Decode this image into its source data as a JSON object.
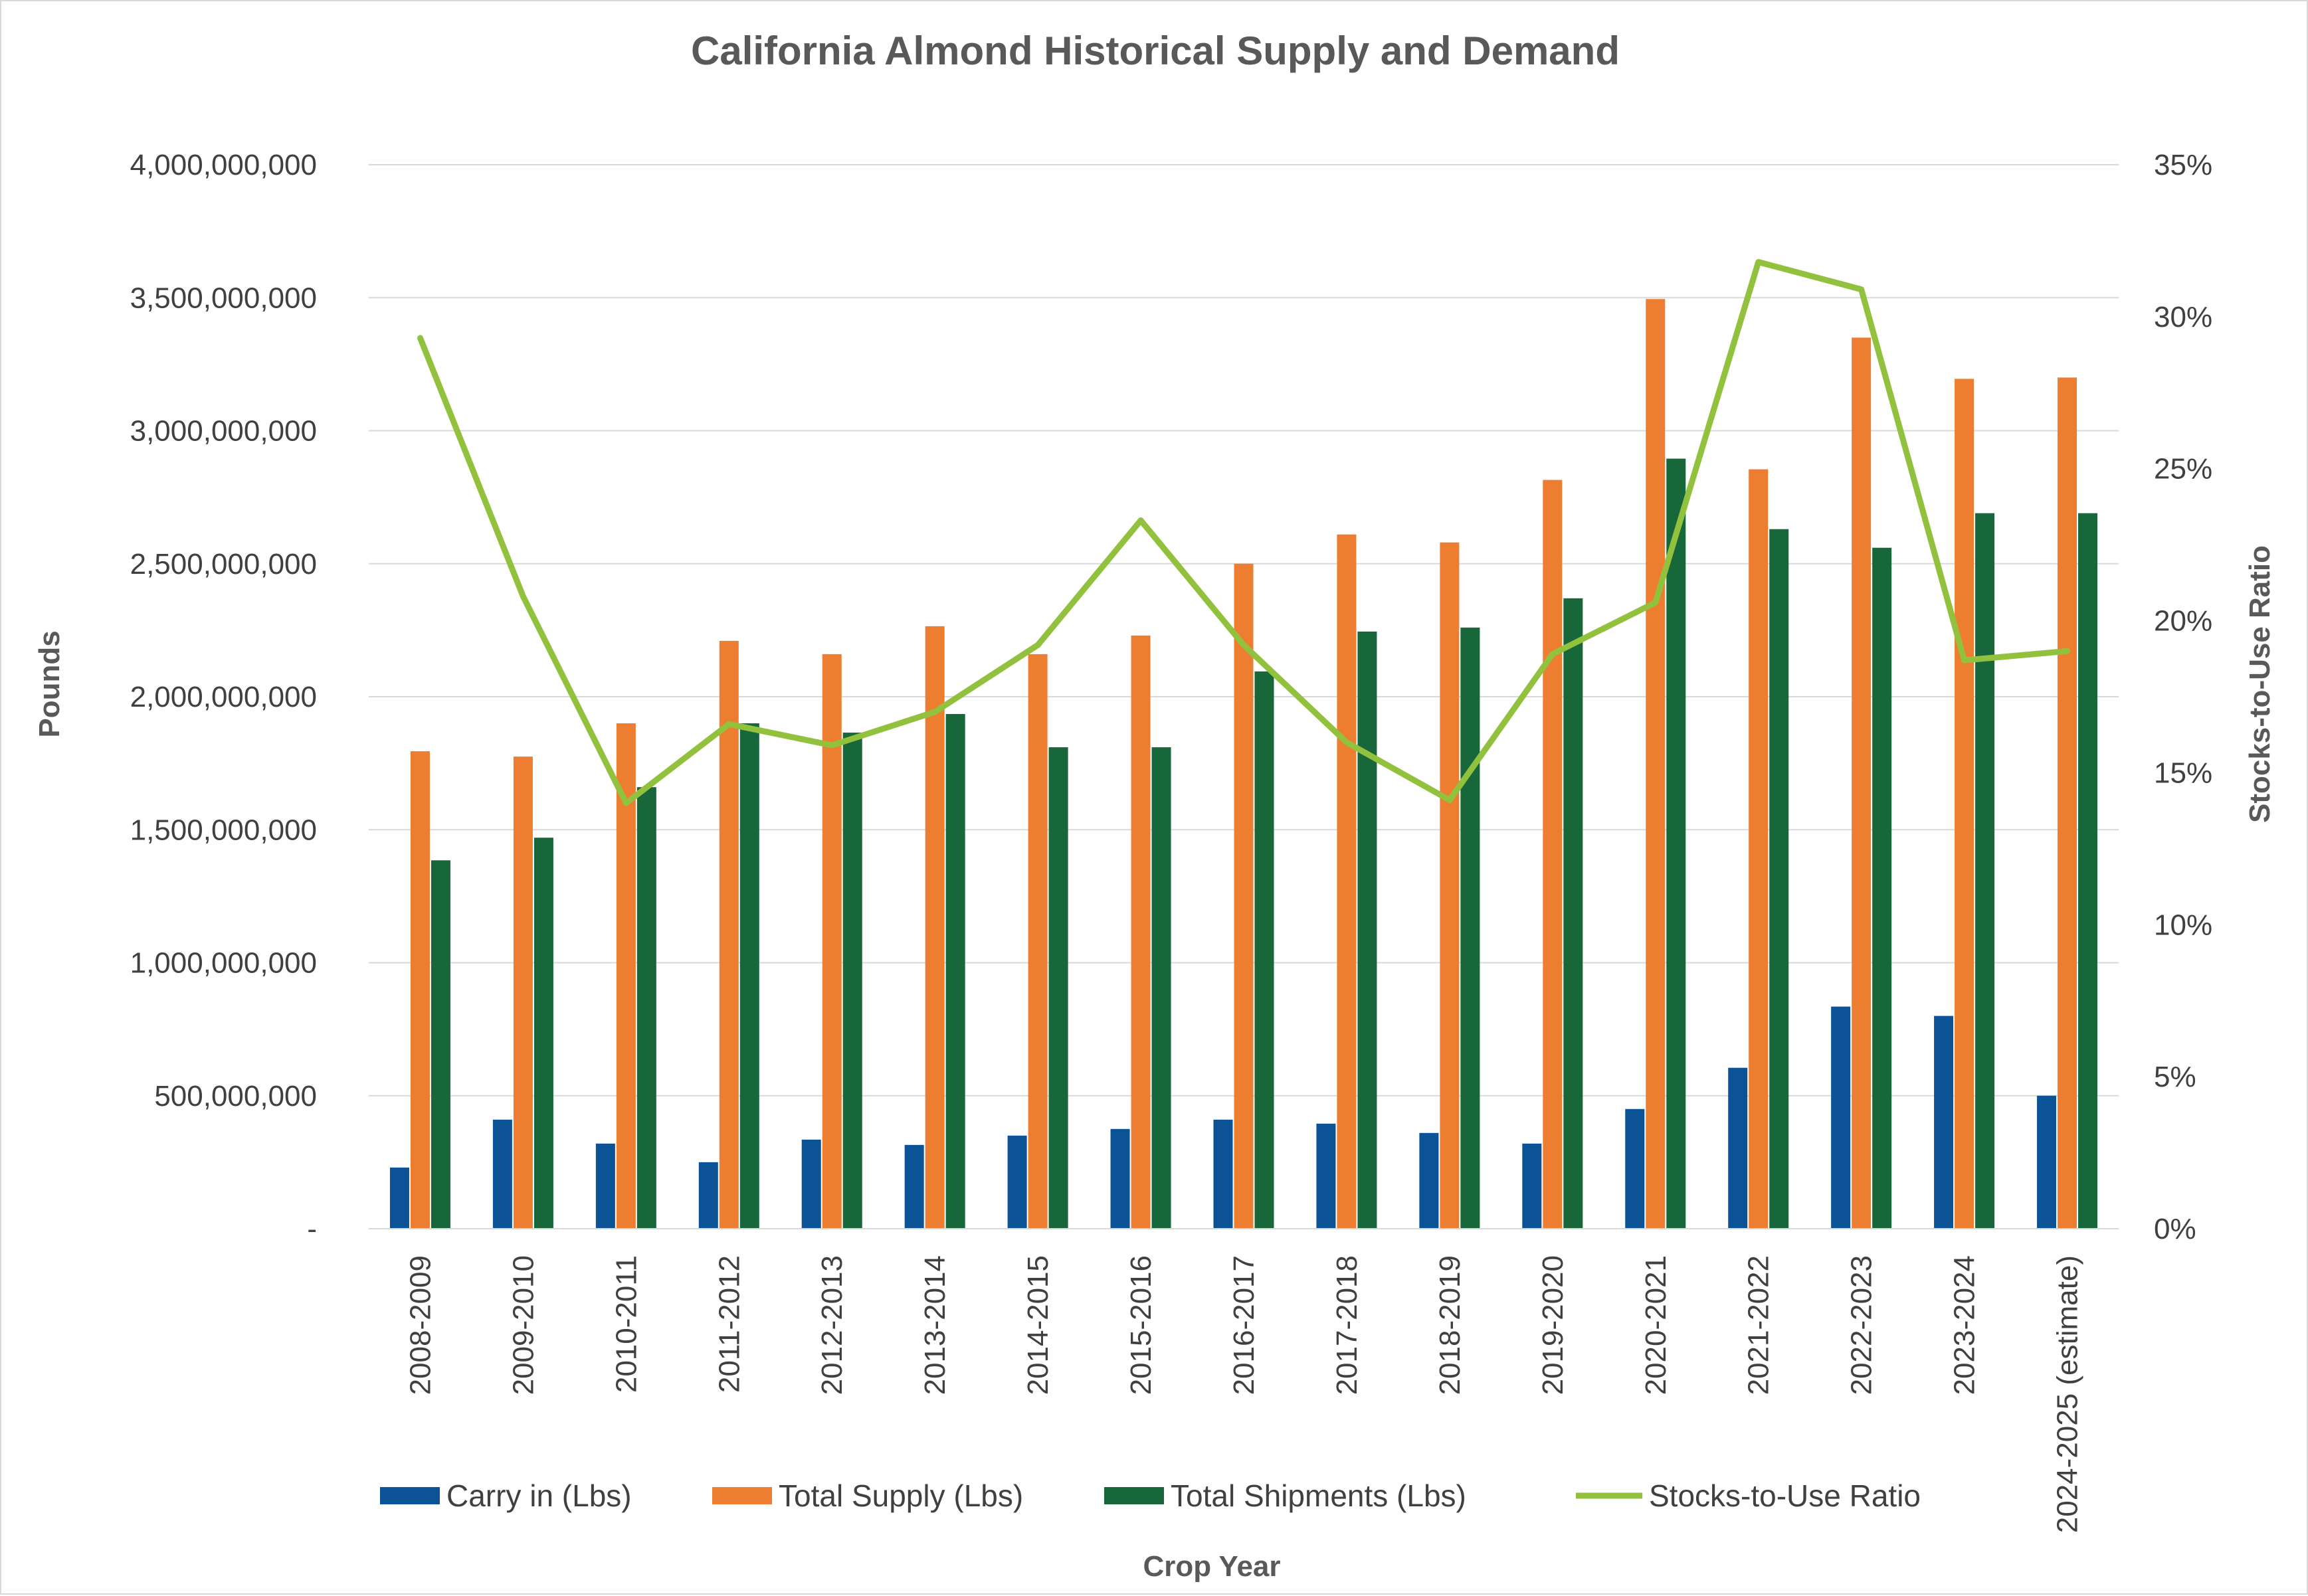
{
  "chart_data": {
    "type": "bar",
    "title": "California Almond Historical Supply and Demand",
    "xlabel": "Crop Year",
    "ylabel": "Pounds",
    "y2label": "Stocks-to-Use Ratio",
    "ylim": [
      0,
      4000000000
    ],
    "y2lim": [
      0,
      0.35
    ],
    "y_ticks": [
      "-",
      "500,000,000",
      "1,000,000,000",
      "1,500,000,000",
      "2,000,000,000",
      "2,500,000,000",
      "3,000,000,000",
      "3,500,000,000",
      "4,000,000,000"
    ],
    "y2_ticks": [
      "0%",
      "5%",
      "10%",
      "15%",
      "20%",
      "25%",
      "30%",
      "35%"
    ],
    "grid": true,
    "legend_position": "bottom",
    "categories": [
      "2008-2009",
      "2009-2010",
      "2010-2011",
      "2011-2012",
      "2012-2013",
      "2013-2014",
      "2014-2015",
      "2015-2016",
      "2016-2017",
      "2017-2018",
      "2018-2019",
      "2019-2020",
      "2020-2021",
      "2021-2022",
      "2022-2023",
      "2023-2024",
      "2024-2025 (estimate)"
    ],
    "series": [
      {
        "name": "Carry in (Lbs)",
        "kind": "bar",
        "axis": "left",
        "color": "#0b5394",
        "values": [
          230000000,
          410000000,
          320000000,
          250000000,
          335000000,
          315000000,
          350000000,
          375000000,
          410000000,
          395000000,
          360000000,
          320000000,
          450000000,
          605000000,
          835000000,
          800000000,
          500000000
        ]
      },
      {
        "name": "Total Supply (Lbs)",
        "kind": "bar",
        "axis": "left",
        "color": "#ed7d31",
        "values": [
          1795000000,
          1775000000,
          1900000000,
          2210000000,
          2160000000,
          2265000000,
          2160000000,
          2230000000,
          2500000000,
          2610000000,
          2580000000,
          2815000000,
          3495000000,
          2855000000,
          3350000000,
          3195000000,
          3200000000
        ]
      },
      {
        "name": "Total Shipments (Lbs)",
        "kind": "bar",
        "axis": "left",
        "color": "#17673a",
        "values": [
          1385000000,
          1470000000,
          1660000000,
          1900000000,
          1865000000,
          1935000000,
          1810000000,
          1810000000,
          2095000000,
          2245000000,
          2260000000,
          2370000000,
          2895000000,
          2630000000,
          2560000000,
          2690000000,
          2690000000
        ]
      },
      {
        "name": "Stocks-to-Use Ratio",
        "kind": "line",
        "axis": "right",
        "color": "#92c13e",
        "values": [
          0.293,
          0.208,
          0.14,
          0.166,
          0.159,
          0.17,
          0.192,
          0.233,
          0.192,
          0.16,
          0.141,
          0.189,
          0.206,
          0.318,
          0.309,
          0.187,
          0.19
        ]
      }
    ]
  }
}
